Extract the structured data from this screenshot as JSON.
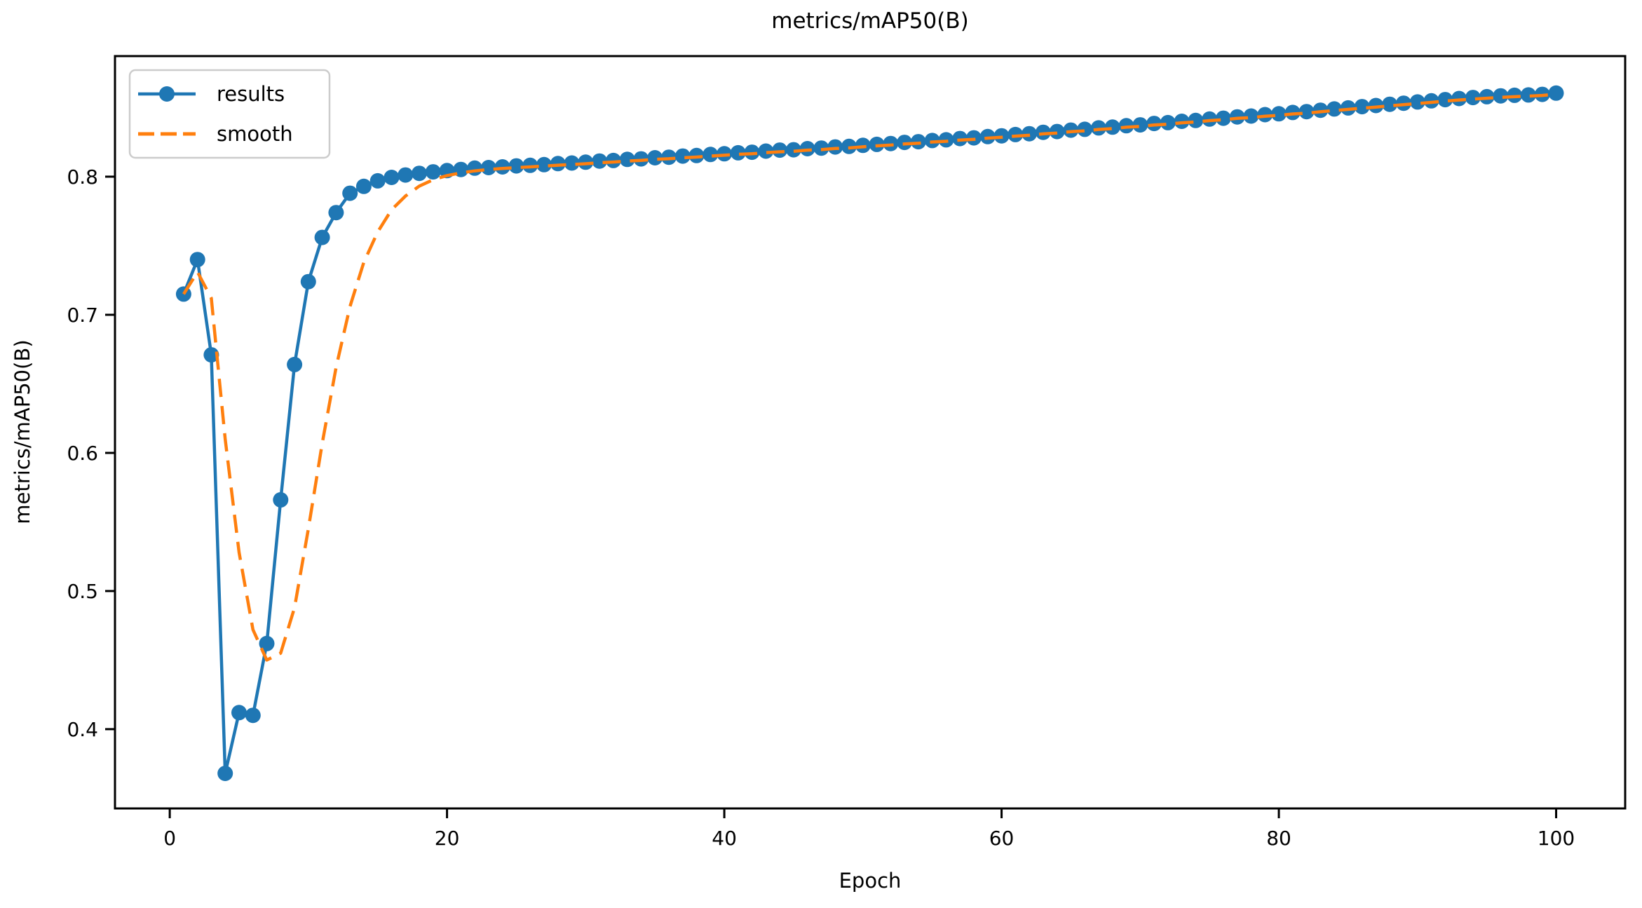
{
  "figure": {
    "background": "#ffffff"
  },
  "chart_data": {
    "type": "line",
    "title": "metrics/mAP50(B)",
    "xlabel": "Epoch",
    "ylabel": "metrics/mAP50(B)",
    "xlim": [
      -3.95,
      104.98
    ],
    "ylim": [
      0.3426,
      0.8873
    ],
    "grid": false,
    "x_ticks": [
      {
        "value": 0,
        "label": "0"
      },
      {
        "value": 20,
        "label": "20"
      },
      {
        "value": 40,
        "label": "40"
      },
      {
        "value": 60,
        "label": "60"
      },
      {
        "value": 80,
        "label": "80"
      },
      {
        "value": 100,
        "label": "100"
      }
    ],
    "y_ticks": [
      {
        "value": 0.4,
        "label": "0.4"
      },
      {
        "value": 0.5,
        "label": "0.5"
      },
      {
        "value": 0.6,
        "label": "0.6"
      },
      {
        "value": 0.7,
        "label": "0.7"
      },
      {
        "value": 0.8,
        "label": "0.8"
      }
    ],
    "legend": {
      "position": "upper-left",
      "entries": [
        "results",
        "smooth"
      ]
    },
    "x": [
      1,
      2,
      3,
      4,
      5,
      6,
      7,
      8,
      9,
      10,
      11,
      12,
      13,
      14,
      15,
      16,
      17,
      18,
      19,
      20,
      21,
      22,
      23,
      24,
      25,
      26,
      27,
      28,
      29,
      30,
      31,
      32,
      33,
      34,
      35,
      36,
      37,
      38,
      39,
      40,
      41,
      42,
      43,
      44,
      45,
      46,
      47,
      48,
      49,
      50,
      51,
      52,
      53,
      54,
      55,
      56,
      57,
      58,
      59,
      60,
      61,
      62,
      63,
      64,
      65,
      66,
      67,
      68,
      69,
      70,
      71,
      72,
      73,
      74,
      75,
      76,
      77,
      78,
      79,
      80,
      81,
      82,
      83,
      84,
      85,
      86,
      87,
      88,
      89,
      90,
      91,
      92,
      93,
      94,
      95,
      96,
      97,
      98,
      99,
      100
    ],
    "series": [
      {
        "name": "results",
        "color": "#1f77b4",
        "line_style": "solid",
        "marker": "circle",
        "values": [
          0.715,
          0.74,
          0.671,
          0.368,
          0.412,
          0.41,
          0.462,
          0.566,
          0.664,
          0.724,
          0.756,
          0.774,
          0.788,
          0.793,
          0.797,
          0.7995,
          0.8012,
          0.8024,
          0.8035,
          0.8044,
          0.8052,
          0.8062,
          0.8066,
          0.8071,
          0.8078,
          0.8082,
          0.8087,
          0.8095,
          0.8099,
          0.8105,
          0.8113,
          0.8117,
          0.8125,
          0.8129,
          0.8137,
          0.8141,
          0.8149,
          0.8153,
          0.8161,
          0.8166,
          0.8173,
          0.8177,
          0.8185,
          0.8192,
          0.8195,
          0.8203,
          0.8207,
          0.8215,
          0.8219,
          0.8227,
          0.8234,
          0.824,
          0.8248,
          0.8253,
          0.8262,
          0.8267,
          0.8276,
          0.8281,
          0.829,
          0.8296,
          0.8305,
          0.8311,
          0.8321,
          0.8327,
          0.8337,
          0.8343,
          0.8353,
          0.8359,
          0.8369,
          0.8375,
          0.8385,
          0.8391,
          0.8401,
          0.8407,
          0.8417,
          0.8423,
          0.8433,
          0.8439,
          0.8449,
          0.8455,
          0.8465,
          0.8471,
          0.8481,
          0.849,
          0.8498,
          0.8507,
          0.8515,
          0.8524,
          0.8532,
          0.8541,
          0.8549,
          0.8558,
          0.8566,
          0.8573,
          0.8579,
          0.8585,
          0.8589,
          0.8592,
          0.8596,
          0.8605
        ]
      },
      {
        "name": "smooth",
        "color": "#ff7f0e",
        "line_style": "dashed",
        "marker": "none",
        "values": [
          0.715,
          0.731,
          0.712,
          0.61,
          0.528,
          0.472,
          0.45,
          0.455,
          0.488,
          0.545,
          0.607,
          0.662,
          0.706,
          0.738,
          0.76,
          0.776,
          0.786,
          0.7932,
          0.7978,
          0.8008,
          0.8028,
          0.8042,
          0.8052,
          0.8059,
          0.8066,
          0.8071,
          0.8077,
          0.8083,
          0.8088,
          0.8094,
          0.8101,
          0.8106,
          0.8113,
          0.8118,
          0.8125,
          0.813,
          0.8137,
          0.8142,
          0.8149,
          0.8155,
          0.8162,
          0.8166,
          0.8174,
          0.818,
          0.8184,
          0.8192,
          0.8196,
          0.8204,
          0.8208,
          0.8216,
          0.8223,
          0.8229,
          0.8237,
          0.8242,
          0.8251,
          0.8256,
          0.8265,
          0.827,
          0.8279,
          0.8285,
          0.8294,
          0.83,
          0.831,
          0.8316,
          0.8326,
          0.8332,
          0.8342,
          0.8348,
          0.8358,
          0.8364,
          0.8374,
          0.838,
          0.839,
          0.8396,
          0.8406,
          0.8412,
          0.8422,
          0.8428,
          0.8438,
          0.8444,
          0.8454,
          0.846,
          0.847,
          0.8479,
          0.8487,
          0.8496,
          0.8504,
          0.8513,
          0.8521,
          0.853,
          0.8538,
          0.8547,
          0.8555,
          0.8562,
          0.8568,
          0.8574,
          0.8579,
          0.8583,
          0.8588,
          0.8597
        ]
      }
    ]
  }
}
